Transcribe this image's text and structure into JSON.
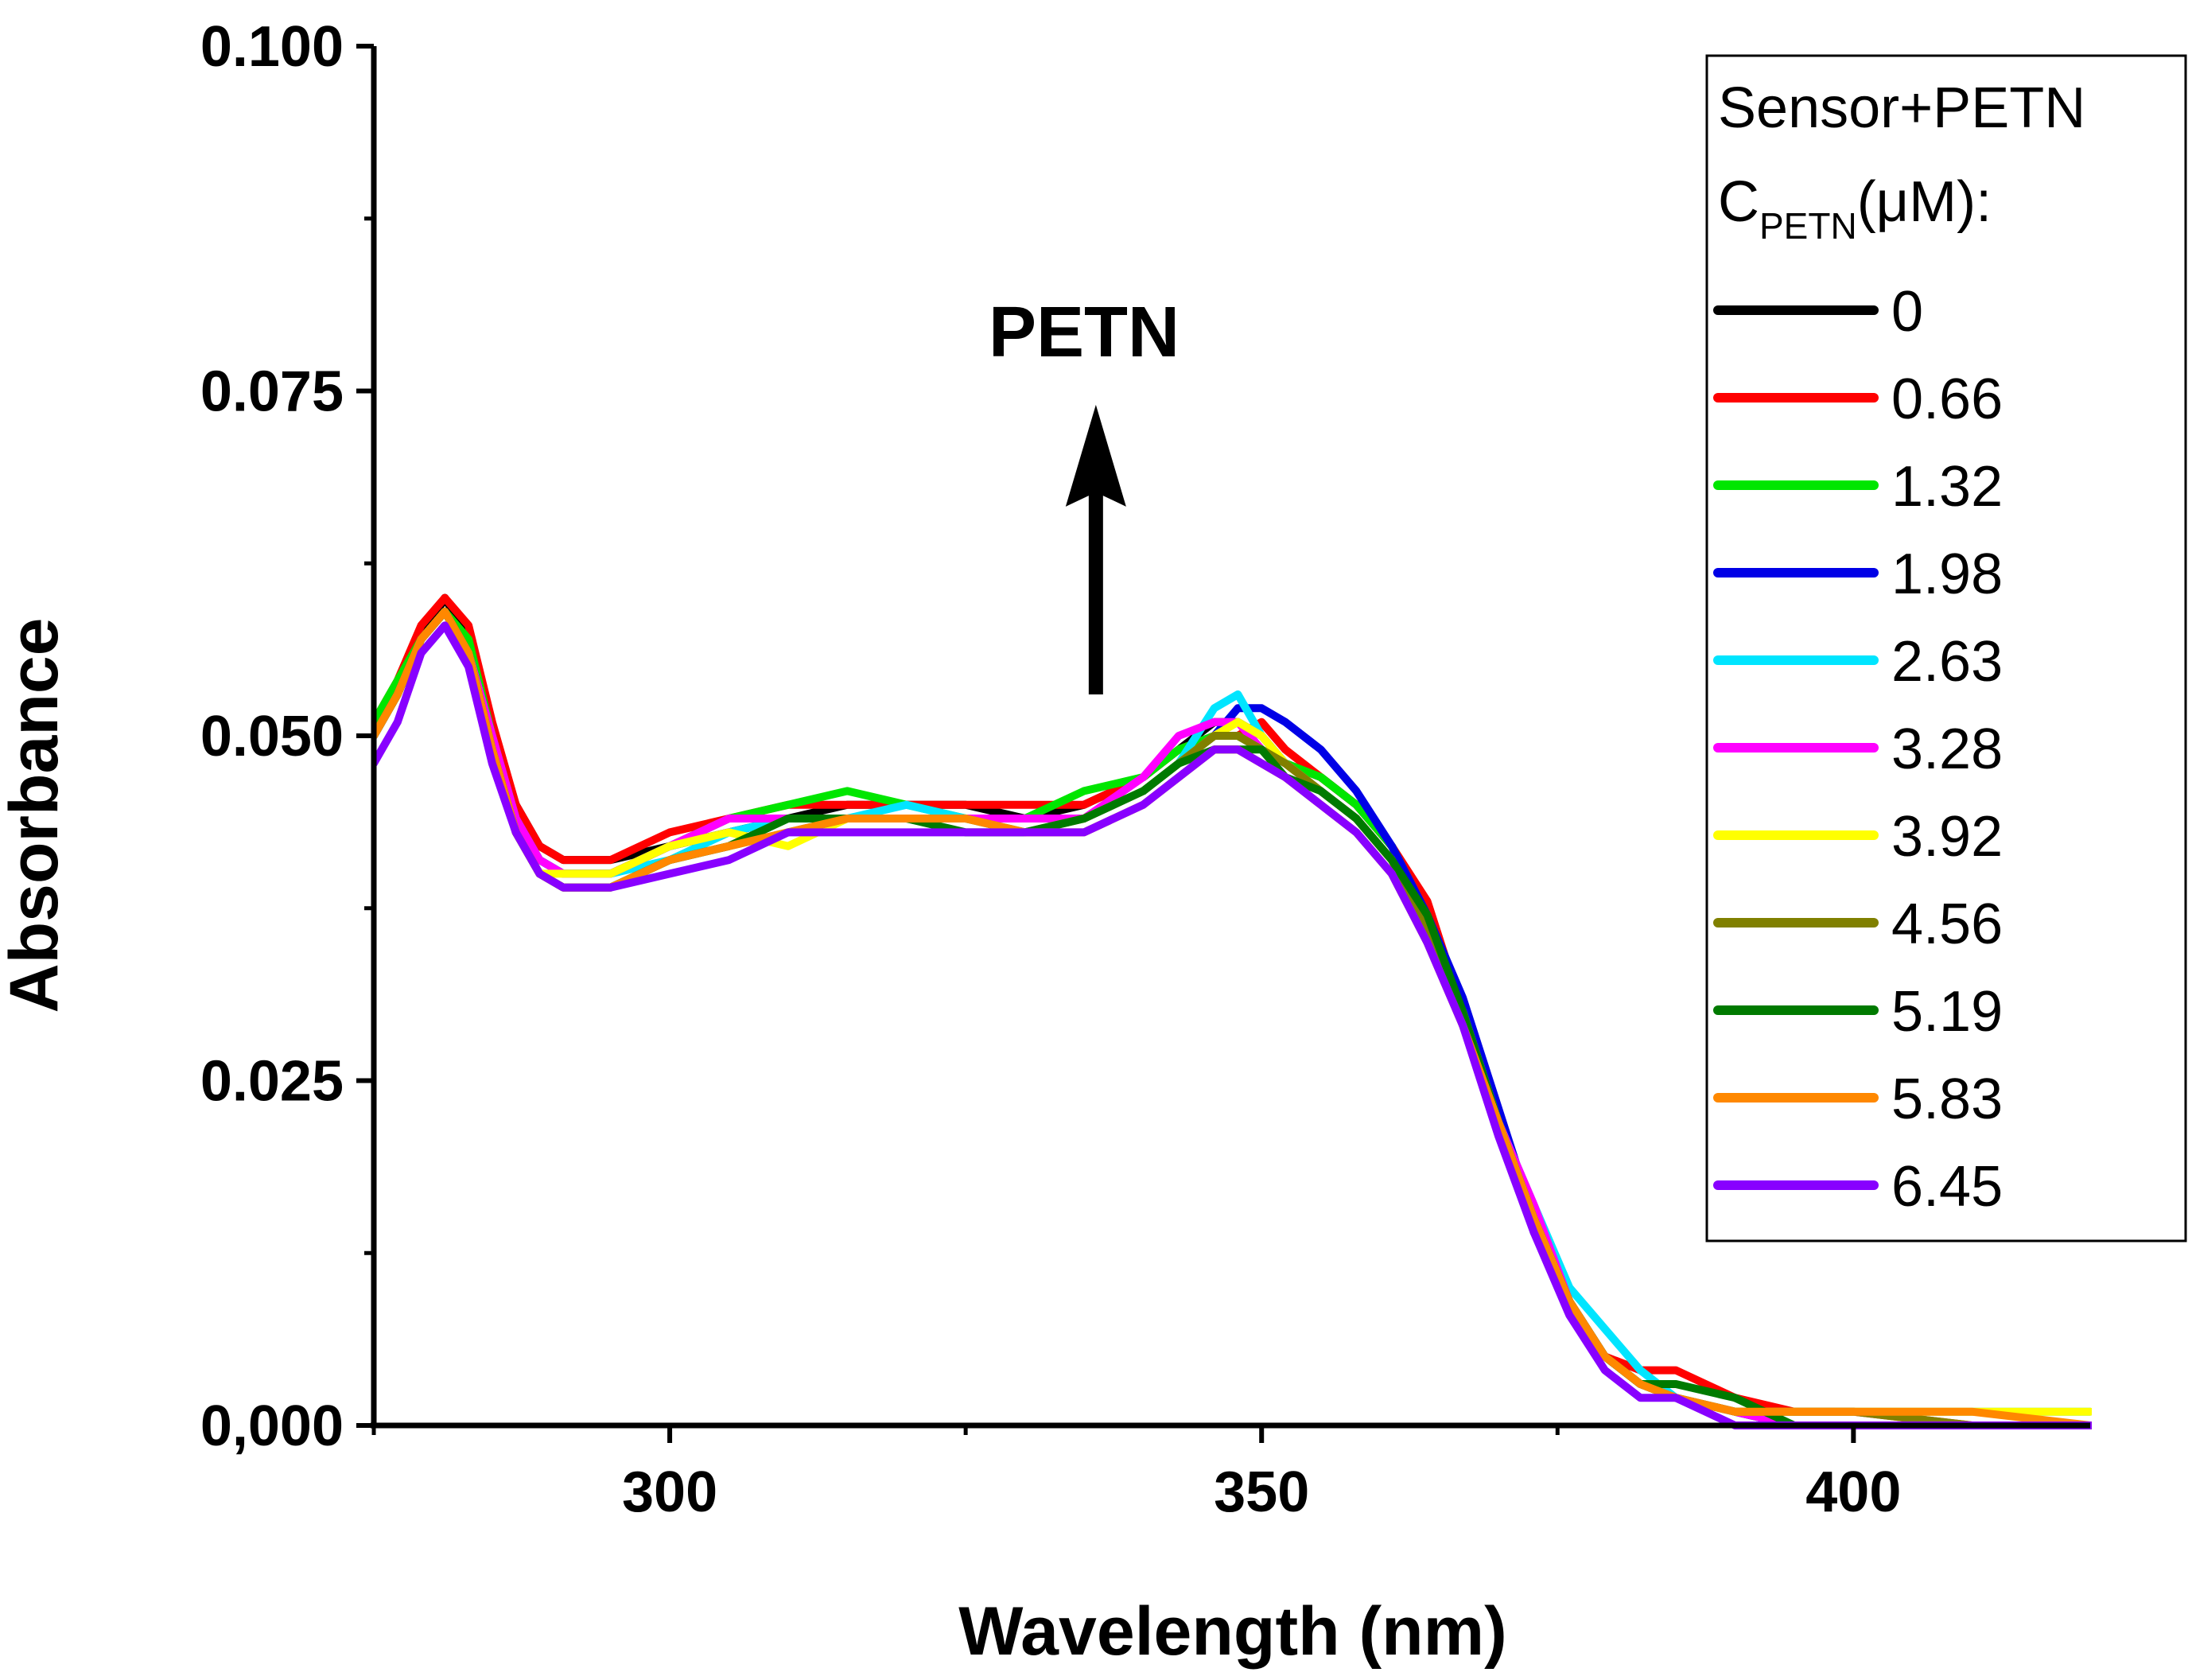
{
  "chart_data": {
    "type": "line",
    "title": "",
    "xlabel": "Wavelength (nm)",
    "ylabel": "Absorbance",
    "xlim": [
      275,
      420
    ],
    "ylim": [
      0,
      0.1
    ],
    "x_ticks": [
      {
        "value": 300,
        "label": "300"
      },
      {
        "value": 350,
        "label": "350"
      },
      {
        "value": 400,
        "label": "400"
      }
    ],
    "x_minor_ticks": [
      275,
      325,
      375
    ],
    "y_ticks": [
      {
        "value": 0,
        "label": "0,000"
      },
      {
        "value": 0.025,
        "label": "0.025"
      },
      {
        "value": 0.05,
        "label": "0.050"
      },
      {
        "value": 0.075,
        "label": "0.075"
      },
      {
        "value": 0.1,
        "label": "0.100"
      }
    ],
    "y_minor_ticks": [
      0.0125,
      0.0375,
      0.0625,
      0.0875
    ],
    "grid": false,
    "legend": {
      "position": "top-right",
      "title_line1": "Sensor+PETN",
      "title_line2_prefix": "C",
      "title_line2_sub": "PETN",
      "title_line2_suffix": "(μM):"
    },
    "annotation": {
      "text": "PETN",
      "arrow": "up",
      "x": 336,
      "y_from": 0.053,
      "y_to": 0.074
    },
    "x": [
      275,
      277,
      279,
      281,
      283,
      285,
      287,
      289,
      291,
      293,
      295,
      300,
      305,
      310,
      315,
      320,
      325,
      330,
      335,
      340,
      343,
      346,
      348,
      350,
      352,
      355,
      358,
      361,
      364,
      367,
      370,
      373,
      376,
      379,
      382,
      385,
      390,
      395,
      400,
      410,
      420
    ],
    "series": [
      {
        "name": "0",
        "color": "#000000",
        "values": [
          0.05,
          0.053,
          0.057,
          0.06,
          0.057,
          0.05,
          0.045,
          0.042,
          0.041,
          0.041,
          0.041,
          0.042,
          0.043,
          0.044,
          0.045,
          0.045,
          0.045,
          0.044,
          0.045,
          0.047,
          0.049,
          0.051,
          0.051,
          0.05,
          0.048,
          0.047,
          0.045,
          0.042,
          0.037,
          0.03,
          0.022,
          0.015,
          0.009,
          0.005,
          0.003,
          0.002,
          0.001,
          0.0,
          0.0,
          0.0,
          0.0
        ]
      },
      {
        "name": "0.66",
        "color": "#ff0000",
        "values": [
          0.051,
          0.054,
          0.058,
          0.06,
          0.058,
          0.051,
          0.045,
          0.042,
          0.041,
          0.041,
          0.041,
          0.043,
          0.044,
          0.045,
          0.045,
          0.045,
          0.045,
          0.045,
          0.045,
          0.047,
          0.049,
          0.05,
          0.05,
          0.051,
          0.049,
          0.047,
          0.045,
          0.042,
          0.038,
          0.03,
          0.022,
          0.015,
          0.009,
          0.005,
          0.004,
          0.004,
          0.002,
          0.001,
          0.001,
          0.0,
          0.0
        ]
      },
      {
        "name": "1.32",
        "color": "#00e600",
        "values": [
          0.051,
          0.054,
          0.057,
          0.059,
          0.057,
          0.05,
          0.044,
          0.041,
          0.04,
          0.04,
          0.04,
          0.042,
          0.044,
          0.045,
          0.046,
          0.045,
          0.044,
          0.044,
          0.046,
          0.047,
          0.049,
          0.05,
          0.05,
          0.049,
          0.048,
          0.047,
          0.045,
          0.042,
          0.037,
          0.03,
          0.022,
          0.014,
          0.009,
          0.005,
          0.003,
          0.002,
          0.001,
          0.0,
          0.0,
          0.0,
          0.0
        ]
      },
      {
        "name": "1.98",
        "color": "#0000e6",
        "values": [
          0.05,
          0.053,
          0.057,
          0.059,
          0.056,
          0.05,
          0.044,
          0.041,
          0.04,
          0.04,
          0.04,
          0.042,
          0.043,
          0.044,
          0.044,
          0.044,
          0.044,
          0.044,
          0.044,
          0.046,
          0.048,
          0.05,
          0.052,
          0.052,
          0.051,
          0.049,
          0.046,
          0.042,
          0.037,
          0.031,
          0.023,
          0.015,
          0.009,
          0.005,
          0.003,
          0.002,
          0.001,
          0.0,
          0.0,
          0.0,
          0.0
        ]
      },
      {
        "name": "2.63",
        "color": "#00e5ff",
        "values": [
          0.05,
          0.053,
          0.057,
          0.059,
          0.056,
          0.05,
          0.044,
          0.041,
          0.04,
          0.04,
          0.04,
          0.041,
          0.043,
          0.044,
          0.044,
          0.045,
          0.044,
          0.043,
          0.044,
          0.046,
          0.048,
          0.052,
          0.053,
          0.05,
          0.048,
          0.046,
          0.044,
          0.041,
          0.036,
          0.03,
          0.022,
          0.016,
          0.01,
          0.007,
          0.004,
          0.002,
          0.001,
          0.001,
          0.001,
          0.001,
          0.001
        ]
      },
      {
        "name": "3.28",
        "color": "#ff00ff",
        "values": [
          0.05,
          0.053,
          0.057,
          0.059,
          0.056,
          0.05,
          0.044,
          0.041,
          0.04,
          0.04,
          0.04,
          0.042,
          0.044,
          0.044,
          0.044,
          0.044,
          0.044,
          0.044,
          0.044,
          0.047,
          0.05,
          0.051,
          0.051,
          0.049,
          0.048,
          0.046,
          0.044,
          0.041,
          0.036,
          0.029,
          0.022,
          0.016,
          0.009,
          0.005,
          0.003,
          0.002,
          0.001,
          0.0,
          0.0,
          0.0,
          0.0
        ]
      },
      {
        "name": "3.92",
        "color": "#ffff00",
        "values": [
          0.05,
          0.053,
          0.057,
          0.059,
          0.056,
          0.049,
          0.043,
          0.04,
          0.04,
          0.04,
          0.04,
          0.042,
          0.043,
          0.042,
          0.044,
          0.044,
          0.044,
          0.043,
          0.044,
          0.046,
          0.048,
          0.05,
          0.051,
          0.05,
          0.048,
          0.046,
          0.044,
          0.041,
          0.036,
          0.03,
          0.022,
          0.015,
          0.009,
          0.005,
          0.003,
          0.002,
          0.001,
          0.001,
          0.001,
          0.001,
          0.001
        ]
      },
      {
        "name": "4.56",
        "color": "#808000",
        "values": [
          0.05,
          0.053,
          0.057,
          0.059,
          0.056,
          0.049,
          0.043,
          0.04,
          0.039,
          0.039,
          0.039,
          0.041,
          0.042,
          0.043,
          0.044,
          0.044,
          0.044,
          0.043,
          0.044,
          0.046,
          0.048,
          0.05,
          0.05,
          0.049,
          0.048,
          0.046,
          0.044,
          0.041,
          0.036,
          0.029,
          0.022,
          0.015,
          0.009,
          0.005,
          0.003,
          0.002,
          0.001,
          0.001,
          0.001,
          0.0,
          0.0
        ]
      },
      {
        "name": "5.19",
        "color": "#007a00",
        "values": [
          0.05,
          0.053,
          0.057,
          0.059,
          0.056,
          0.049,
          0.043,
          0.04,
          0.039,
          0.039,
          0.039,
          0.041,
          0.042,
          0.044,
          0.044,
          0.044,
          0.043,
          0.043,
          0.044,
          0.046,
          0.048,
          0.049,
          0.049,
          0.049,
          0.047,
          0.046,
          0.044,
          0.041,
          0.037,
          0.03,
          0.022,
          0.015,
          0.009,
          0.005,
          0.003,
          0.003,
          0.002,
          0.0,
          0.0,
          0.0,
          0.0
        ]
      },
      {
        "name": "5.83",
        "color": "#ff8800",
        "values": [
          0.05,
          0.053,
          0.057,
          0.059,
          0.056,
          0.049,
          0.043,
          0.04,
          0.039,
          0.039,
          0.039,
          0.041,
          0.042,
          0.043,
          0.044,
          0.044,
          0.044,
          0.043,
          0.043,
          0.045,
          0.047,
          0.049,
          0.049,
          0.048,
          0.047,
          0.045,
          0.043,
          0.04,
          0.035,
          0.029,
          0.022,
          0.015,
          0.009,
          0.005,
          0.003,
          0.002,
          0.001,
          0.001,
          0.001,
          0.001,
          0.0
        ]
      },
      {
        "name": "6.45",
        "color": "#8800ff",
        "values": [
          0.048,
          0.051,
          0.056,
          0.058,
          0.055,
          0.048,
          0.043,
          0.04,
          0.039,
          0.039,
          0.039,
          0.04,
          0.041,
          0.043,
          0.043,
          0.043,
          0.043,
          0.043,
          0.043,
          0.045,
          0.047,
          0.049,
          0.049,
          0.048,
          0.047,
          0.045,
          0.043,
          0.04,
          0.035,
          0.029,
          0.021,
          0.014,
          0.008,
          0.004,
          0.002,
          0.002,
          0.0,
          0.0,
          0.0,
          0.0,
          0.0
        ]
      }
    ]
  }
}
